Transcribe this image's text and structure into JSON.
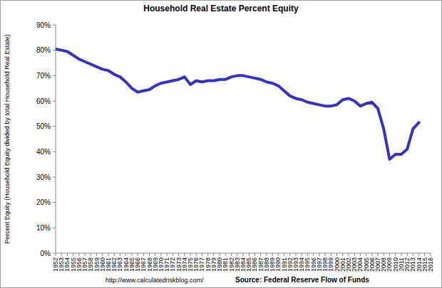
{
  "chart_data": {
    "type": "line",
    "title": "Household Real Estate Percent Equity",
    "y_label": "Percent Equity (Household Equity divided by total Household Real Estate)",
    "annotations": [
      "http://www.calculatedriskblog.com/",
      "Source: Federal Reserve Flow of Funds"
    ],
    "x": [
      1952,
      1953,
      1954,
      1955,
      1956,
      1957,
      1958,
      1959,
      1960,
      1961,
      1962,
      1963,
      1964,
      1965,
      1966,
      1967,
      1968,
      1969,
      1970,
      1971,
      1972,
      1973,
      1974,
      1975,
      1976,
      1977,
      1978,
      1979,
      1980,
      1981,
      1982,
      1983,
      1984,
      1985,
      1986,
      1987,
      1988,
      1989,
      1990,
      1991,
      1992,
      1993,
      1994,
      1995,
      1996,
      1997,
      1998,
      1999,
      2000,
      2001,
      2002,
      2003,
      2004,
      2005,
      2006,
      2007,
      2008,
      2009,
      2010,
      2011,
      2012,
      2013,
      2014
    ],
    "values": [
      80.5,
      80,
      79.5,
      78,
      76.5,
      75.5,
      74.5,
      73.5,
      72.5,
      72,
      70.5,
      69.5,
      67.5,
      65,
      63.5,
      64,
      64.5,
      66,
      67,
      67.5,
      68,
      68.5,
      69.5,
      66.5,
      68,
      67.5,
      68,
      68,
      68.5,
      68.5,
      69.5,
      70,
      70,
      69.5,
      69,
      68.5,
      67.5,
      67,
      66,
      64,
      62,
      61,
      60.5,
      59.5,
      59,
      58.5,
      58,
      58,
      58.5,
      60.5,
      61,
      60,
      58,
      59,
      59.5,
      57,
      49,
      37,
      39,
      39,
      41,
      49,
      51.5
    ],
    "color": "#3333cc",
    "xlim": [
      1952,
      2016
    ],
    "xticks": [
      1952,
      1953,
      1954,
      1955,
      1956,
      1957,
      1958,
      1959,
      1960,
      1961,
      1962,
      1963,
      1964,
      1965,
      1966,
      1967,
      1968,
      1969,
      1970,
      1971,
      1972,
      1973,
      1974,
      1975,
      1976,
      1977,
      1978,
      1979,
      1980,
      1981,
      1982,
      1983,
      1984,
      1985,
      1986,
      1987,
      1988,
      1989,
      1990,
      1991,
      1992,
      1993,
      1994,
      1995,
      1996,
      1997,
      1998,
      1999,
      2000,
      2001,
      2002,
      2003,
      2004,
      2005,
      2006,
      2007,
      2008,
      2009,
      2010,
      2011,
      2012,
      2013,
      2014,
      2015,
      2016
    ],
    "ylim": [
      0,
      90
    ],
    "yticks": [
      {
        "value": 0,
        "label": "0%"
      },
      {
        "value": 10,
        "label": "10%"
      },
      {
        "value": 20,
        "label": "20%"
      },
      {
        "value": 30,
        "label": "30%"
      },
      {
        "value": 40,
        "label": "40%"
      },
      {
        "value": 50,
        "label": "50%"
      },
      {
        "value": 60,
        "label": "60%"
      },
      {
        "value": 70,
        "label": "70%"
      },
      {
        "value": 80,
        "label": "80%"
      },
      {
        "value": 90,
        "label": "90%"
      }
    ],
    "grid": false
  }
}
